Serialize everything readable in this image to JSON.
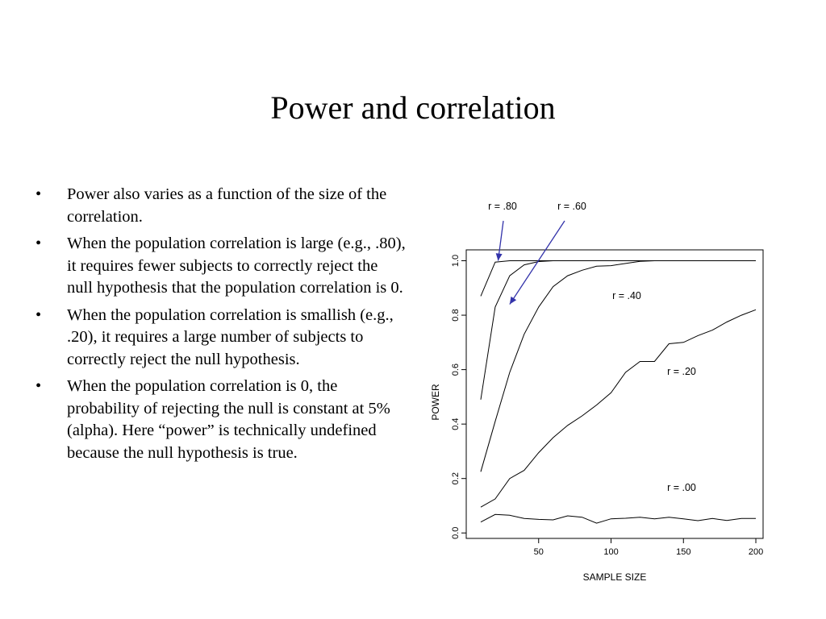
{
  "slide": {
    "title": "Power and correlation",
    "bullets": [
      "Power also varies as a function of the size of the correlation.",
      "When the population correlation is large (e.g., .80), it requires fewer subjects to correctly reject the null hypothesis that the population correlation is 0.",
      "When the population correlation is smallish (e.g., .20), it requires a large number of subjects to correctly reject the null hypothesis.",
      "When the population correlation is 0, the probability of rejecting the null is constant at 5% (alpha).  Here “power” is technically undefined because the null hypothesis is true."
    ],
    "bullet_symbol": "•"
  },
  "chart_data": {
    "type": "line",
    "title": "",
    "xlabel": "SAMPLE SIZE",
    "ylabel": "POWER",
    "xlim": [
      0,
      205
    ],
    "ylim": [
      -0.02,
      1.04
    ],
    "xticks": [
      50,
      100,
      150,
      200
    ],
    "xtick_labels": [
      "50",
      "100",
      "150",
      "200"
    ],
    "yticks": [
      0.0,
      0.2,
      0.4,
      0.6,
      0.8,
      1.0
    ],
    "ytick_labels": [
      "0.0",
      "0.2",
      "0.4",
      "0.6",
      "0.8",
      "1.0"
    ],
    "grid": false,
    "line_color": "#000000",
    "arrow_color": "#3333aa",
    "series": [
      {
        "name": "r = .80",
        "x": [
          10,
          20,
          30,
          40,
          50,
          60,
          70,
          80,
          90,
          100,
          110,
          120,
          130,
          140,
          150,
          160,
          170,
          180,
          190,
          200
        ],
        "y": [
          0.87,
          0.995,
          1,
          1,
          1,
          1,
          1,
          1,
          1,
          1,
          1,
          1,
          1,
          1,
          1,
          1,
          1,
          1,
          1,
          1
        ]
      },
      {
        "name": "r = .60",
        "x": [
          10,
          20,
          30,
          40,
          50,
          60,
          70,
          80,
          90,
          100,
          110,
          120,
          130,
          140,
          150,
          160,
          170,
          180,
          190,
          200
        ],
        "y": [
          0.49,
          0.83,
          0.945,
          0.985,
          0.997,
          1,
          1,
          1,
          1,
          1,
          1,
          1,
          1,
          1,
          1,
          1,
          1,
          1,
          1,
          1
        ]
      },
      {
        "name": "r = .40",
        "x": [
          10,
          20,
          30,
          40,
          50,
          60,
          70,
          80,
          90,
          100,
          110,
          120,
          130,
          140,
          150,
          160,
          170,
          180,
          190,
          200
        ],
        "y": [
          0.225,
          0.41,
          0.59,
          0.73,
          0.83,
          0.905,
          0.945,
          0.965,
          0.98,
          0.982,
          0.99,
          0.998,
          1,
          1,
          1,
          1,
          1,
          1,
          1,
          1
        ]
      },
      {
        "name": "r = .20",
        "x": [
          10,
          20,
          30,
          40,
          50,
          60,
          70,
          80,
          90,
          100,
          110,
          120,
          130,
          140,
          150,
          160,
          170,
          180,
          190,
          200
        ],
        "y": [
          0.095,
          0.125,
          0.2,
          0.23,
          0.295,
          0.35,
          0.395,
          0.43,
          0.47,
          0.515,
          0.59,
          0.63,
          0.63,
          0.695,
          0.7,
          0.725,
          0.745,
          0.775,
          0.8,
          0.82
        ]
      },
      {
        "name": "r = .00",
        "x": [
          10,
          20,
          30,
          40,
          50,
          60,
          70,
          80,
          90,
          100,
          110,
          120,
          130,
          140,
          150,
          160,
          170,
          180,
          190,
          200
        ],
        "y": [
          0.04,
          0.068,
          0.065,
          0.053,
          0.05,
          0.048,
          0.063,
          0.058,
          0.036,
          0.052,
          0.054,
          0.058,
          0.052,
          0.058,
          0.052,
          0.045,
          0.053,
          0.046,
          0.053,
          0.053
        ]
      }
    ],
    "annotations": [
      {
        "text": "r = .80",
        "arrow_to": [
          22,
          1.0
        ]
      },
      {
        "text": "r = .60",
        "arrow_to": [
          30,
          0.84
        ]
      },
      {
        "text": "r = .40"
      },
      {
        "text": "r = .20"
      },
      {
        "text": "r = .00"
      }
    ]
  }
}
